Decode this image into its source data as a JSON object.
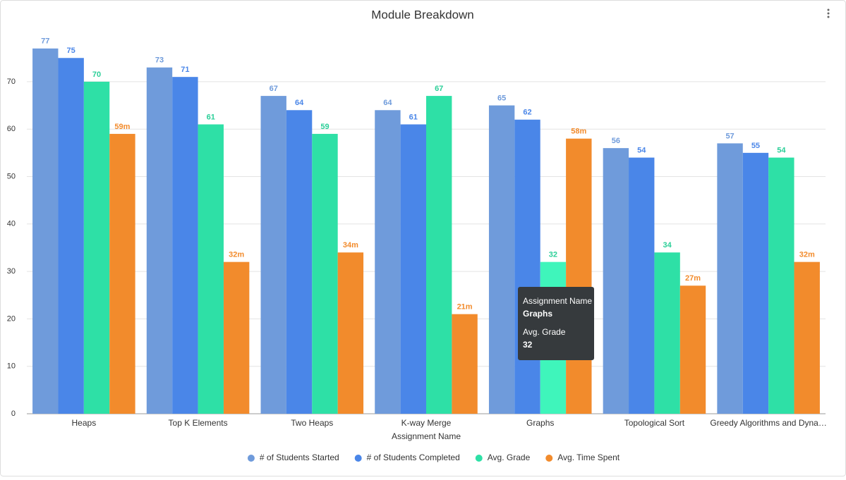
{
  "chart_data": {
    "type": "bar",
    "title": "Module Breakdown",
    "x_label": "Assignment Name",
    "categories": [
      "Heaps",
      "Top K Elements",
      "Two Heaps",
      "K-way Merge",
      "Graphs",
      "Topological Sort",
      "Greedy Algorithms and Dyna…"
    ],
    "series": [
      {
        "name": "# of Students Started",
        "color": "#6f9bdb",
        "values": [
          77,
          73,
          67,
          64,
          65,
          56,
          57
        ]
      },
      {
        "name": "# of Students Completed",
        "color": "#4a86e8",
        "values": [
          75,
          71,
          64,
          61,
          62,
          54,
          55
        ]
      },
      {
        "name": "Avg. Grade",
        "color": "#2ee0a6",
        "values": [
          70,
          61,
          59,
          67,
          32,
          34,
          54
        ]
      },
      {
        "name": "Avg. Time Spent",
        "color": "#f28b2c",
        "values": [
          59,
          32,
          34,
          21,
          58,
          27,
          32
        ],
        "value_labels": [
          "59m",
          "32m",
          "34m",
          "21m",
          "58m",
          "27m",
          "32m"
        ]
      }
    ],
    "ylim": [
      0,
      80
    ],
    "yticks": [
      0,
      10,
      20,
      30,
      40,
      50,
      60,
      70
    ],
    "grid": true,
    "legend": "bottom"
  }
}
